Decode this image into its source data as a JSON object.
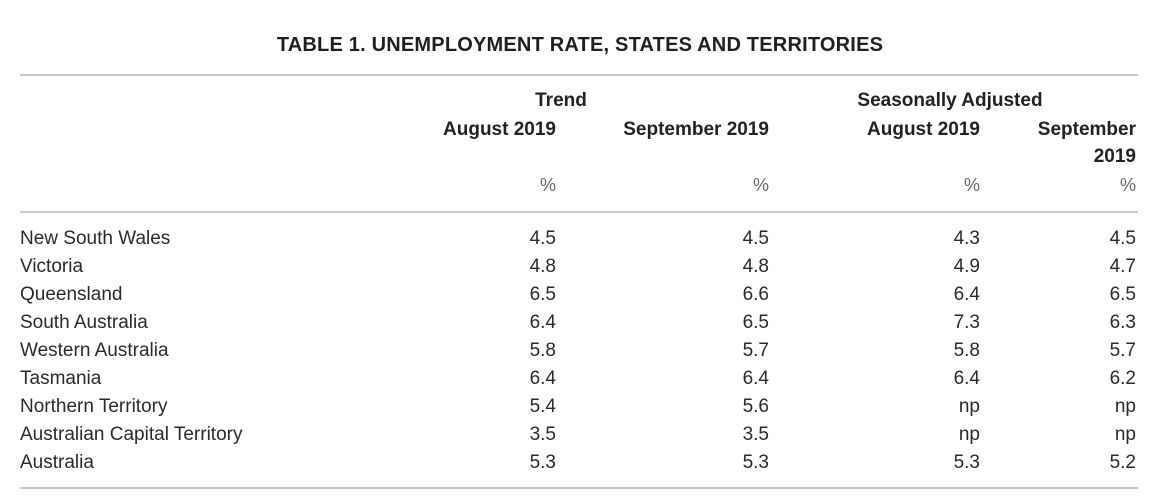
{
  "table": {
    "title": "TABLE 1. UNEMPLOYMENT RATE, STATES AND TERRITORIES",
    "groups": {
      "trend": "Trend",
      "seasonally_adjusted": "Seasonally Adjusted"
    },
    "columns": {
      "trend_aug": "August 2019",
      "trend_sep": "September 2019",
      "sa_aug": "August 2019",
      "sa_sep_line1": "September",
      "sa_sep_line2": "2019"
    },
    "unit": "%",
    "rows": [
      {
        "region": "New South Wales",
        "trend_aug": "4.5",
        "trend_sep": "4.5",
        "sa_aug": "4.3",
        "sa_sep": "4.5"
      },
      {
        "region": "Victoria",
        "trend_aug": "4.8",
        "trend_sep": "4.8",
        "sa_aug": "4.9",
        "sa_sep": "4.7"
      },
      {
        "region": "Queensland",
        "trend_aug": "6.5",
        "trend_sep": "6.6",
        "sa_aug": "6.4",
        "sa_sep": "6.5"
      },
      {
        "region": "South Australia",
        "trend_aug": "6.4",
        "trend_sep": "6.5",
        "sa_aug": "7.3",
        "sa_sep": "6.3"
      },
      {
        "region": "Western Australia",
        "trend_aug": "5.8",
        "trend_sep": "5.7",
        "sa_aug": "5.8",
        "sa_sep": "5.7"
      },
      {
        "region": "Tasmania",
        "trend_aug": "6.4",
        "trend_sep": "6.4",
        "sa_aug": "6.4",
        "sa_sep": "6.2"
      },
      {
        "region": "Northern Territory",
        "trend_aug": "5.4",
        "trend_sep": "5.6",
        "sa_aug": "np",
        "sa_sep": "np"
      },
      {
        "region": "Australian Capital Territory",
        "trend_aug": "3.5",
        "trend_sep": "3.5",
        "sa_aug": "np",
        "sa_sep": "np"
      },
      {
        "region": "Australia",
        "trend_aug": "5.3",
        "trend_sep": "5.3",
        "sa_aug": "5.3",
        "sa_sep": "5.2"
      }
    ]
  }
}
